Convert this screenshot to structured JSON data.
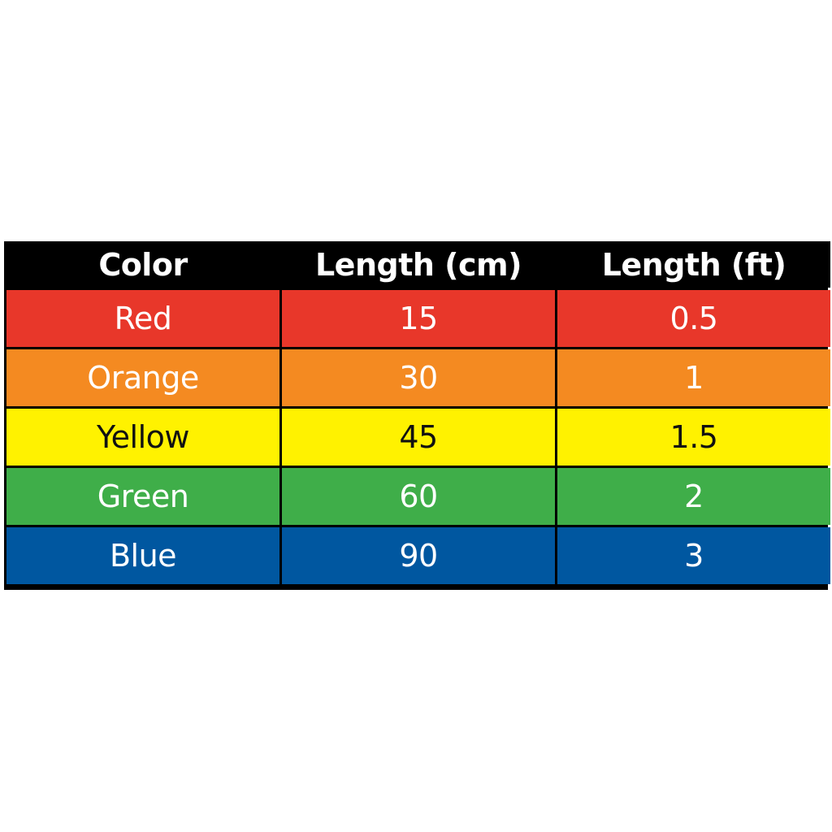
{
  "table": {
    "headers": [
      "Color",
      "Length (cm)",
      "Length (ft)"
    ],
    "rows": [
      {
        "cells": [
          "Red",
          "15",
          "0.5"
        ],
        "bg": "#E8372A",
        "text_color": "#FFFFFF"
      },
      {
        "cells": [
          "Orange",
          "30",
          "1"
        ],
        "bg": "#F48A21",
        "text_color": "#FFFFFF"
      },
      {
        "cells": [
          "Yellow",
          "45",
          "1.5"
        ],
        "bg": "#FFF200",
        "text_color": "#111111"
      },
      {
        "cells": [
          "Green",
          "60",
          "2"
        ],
        "bg": "#3FAE49",
        "text_color": "#FFFFFF"
      },
      {
        "cells": [
          "Blue",
          "90",
          "3"
        ],
        "bg": "#0057A0",
        "text_color": "#FFFFFF"
      }
    ],
    "header_bg": "#000000"
  }
}
